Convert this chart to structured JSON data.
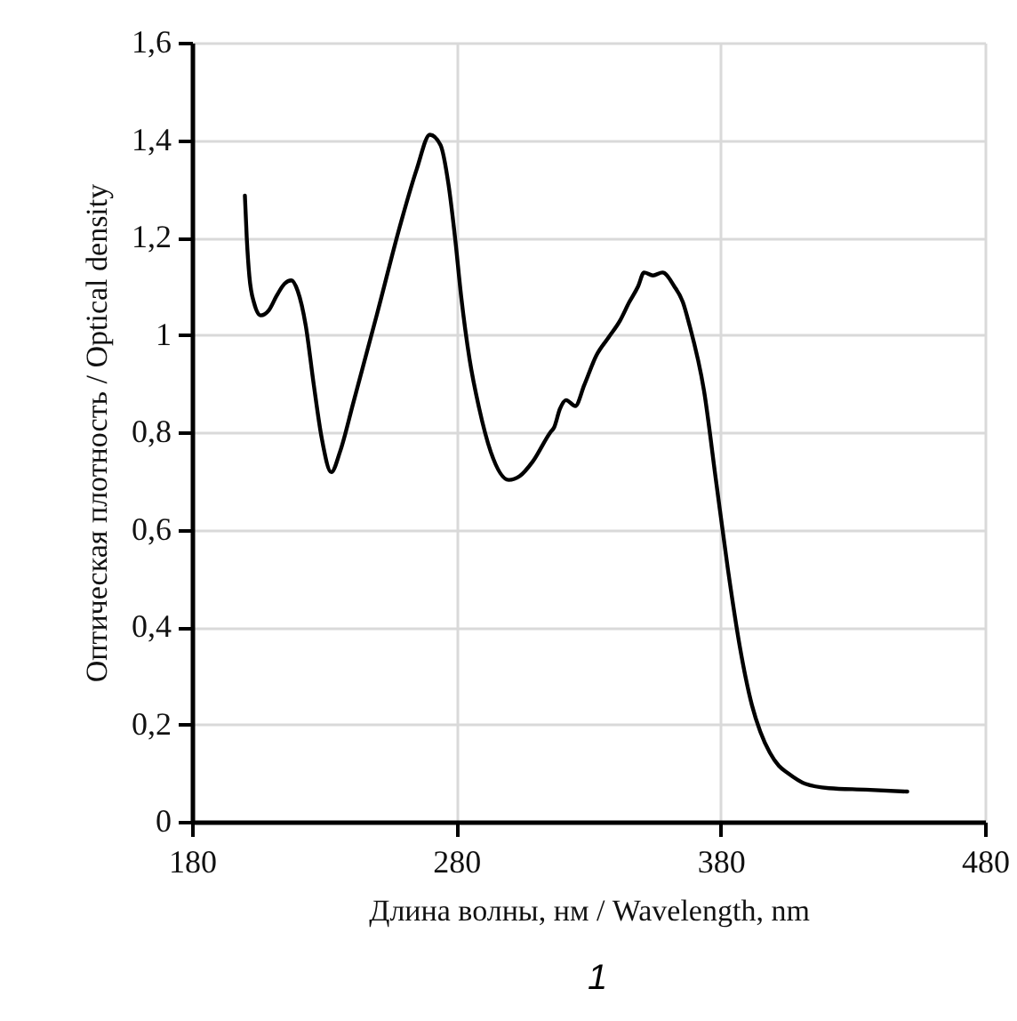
{
  "chart_data": {
    "type": "line",
    "xlabel": "Длина волны, нм / Wavelength, nm",
    "ylabel": "Оптическая плотность / Optical density",
    "annotations": [
      "1"
    ],
    "xlim": [
      180,
      480
    ],
    "xticks": [
      180,
      280,
      380,
      480
    ],
    "ylim": [
      0,
      1.6
    ],
    "yticks": [
      {
        "value": 0,
        "label": "0"
      },
      {
        "value": 0.2,
        "label": "0,2"
      },
      {
        "value": 0.4,
        "label": "0,4"
      },
      {
        "value": 0.6,
        "label": "0,6"
      },
      {
        "value": 0.8,
        "label": "0,8"
      },
      {
        "value": 1,
        "label": "1"
      },
      {
        "value": 1.2,
        "label": "1,2"
      },
      {
        "value": 1.4,
        "label": "1,4"
      },
      {
        "value": 1.6,
        "label": "1,6"
      }
    ],
    "grid": true,
    "line_style": "solid",
    "marker": "none",
    "series": [
      {
        "color": "#000000",
        "x": [
          200,
          200.7,
          201.7,
          203.5,
          206,
          209,
          212,
          215,
          217.6,
          220,
          223,
          226,
          229,
          232.7,
          236,
          241,
          250,
          259,
          265,
          270,
          274,
          277,
          279.5,
          281.8,
          285,
          288.6,
          293,
          299.8,
          304,
          308.8,
          315.6,
          317,
          319.2,
          321.5,
          325,
          328.4,
          333,
          337.5,
          342,
          345.4,
          348.8,
          351,
          354.4,
          358,
          362.4,
          365.7,
          368,
          373.7,
          378.2,
          382.7,
          387.2,
          391.8,
          395,
          398.6,
          402,
          405.4,
          412,
          421,
          434.8,
          450.6
        ],
        "values": [
          1.286,
          1.2,
          1.12,
          1.065,
          1.04,
          1.05,
          1.08,
          1.105,
          1.112,
          1.09,
          1.02,
          0.9,
          0.79,
          0.718,
          0.76,
          0.86,
          1.043,
          1.23,
          1.34,
          1.411,
          1.39,
          1.31,
          1.2,
          1.08,
          0.95,
          0.85,
          0.76,
          0.702,
          0.71,
          0.739,
          0.8,
          0.81,
          0.848,
          0.866,
          0.854,
          0.897,
          0.958,
          0.994,
          1.03,
          1.067,
          1.1,
          1.128,
          1.122,
          1.128,
          1.1,
          1.067,
          1.024,
          0.885,
          0.702,
          0.52,
          0.361,
          0.24,
          0.185,
          0.142,
          0.115,
          0.1,
          0.078,
          0.069,
          0.066,
          0.062
        ]
      }
    ]
  }
}
